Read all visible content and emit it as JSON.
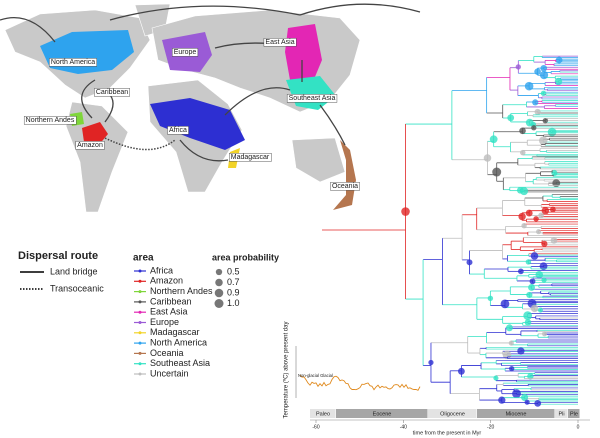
{
  "map": {
    "labels": [
      "North America",
      "Europe",
      "East Asia",
      "Caribbean",
      "Northern Andes",
      "Amazon",
      "Africa",
      "Southeast Asia",
      "Madagascar",
      "Oceania"
    ]
  },
  "legend": {
    "dispersal": {
      "title": "Dispersal route",
      "items": [
        "Land bridge",
        "Transoceanic"
      ]
    },
    "area": {
      "title": "area",
      "items": [
        {
          "name": "Africa",
          "color": "#2d2fd2"
        },
        {
          "name": "Amazon",
          "color": "#e02424"
        },
        {
          "name": "Northern Andes",
          "color": "#7fd63a"
        },
        {
          "name": "Caribbean",
          "color": "#555555"
        },
        {
          "name": "East Asia",
          "color": "#e326b4"
        },
        {
          "name": "Europe",
          "color": "#9a5bd6"
        },
        {
          "name": "Madagascar",
          "color": "#f2d327"
        },
        {
          "name": "North America",
          "color": "#2ea3ee"
        },
        {
          "name": "Oceania",
          "color": "#b5764f"
        },
        {
          "name": "Southeast Asia",
          "color": "#33e2c4"
        },
        {
          "name": "Uncertain",
          "color": "#bdbdbd"
        }
      ]
    },
    "probability": {
      "title": "area probability",
      "items": [
        0.5,
        0.7,
        0.9,
        {
          "value": 1,
          "label": "1.0"
        }
      ]
    }
  },
  "timeline": {
    "xlabel": "time from the present in Myr",
    "xticks": [
      -60,
      -40,
      -20,
      0
    ],
    "epochs": [
      "Paleo",
      "Eocene",
      "Oligocene",
      "Miocene",
      "Pli",
      "Ple"
    ]
  },
  "temperature": {
    "ylabel": "Temperature (ºC) above present day",
    "annotation": "Non-glacial Glacial"
  }
}
